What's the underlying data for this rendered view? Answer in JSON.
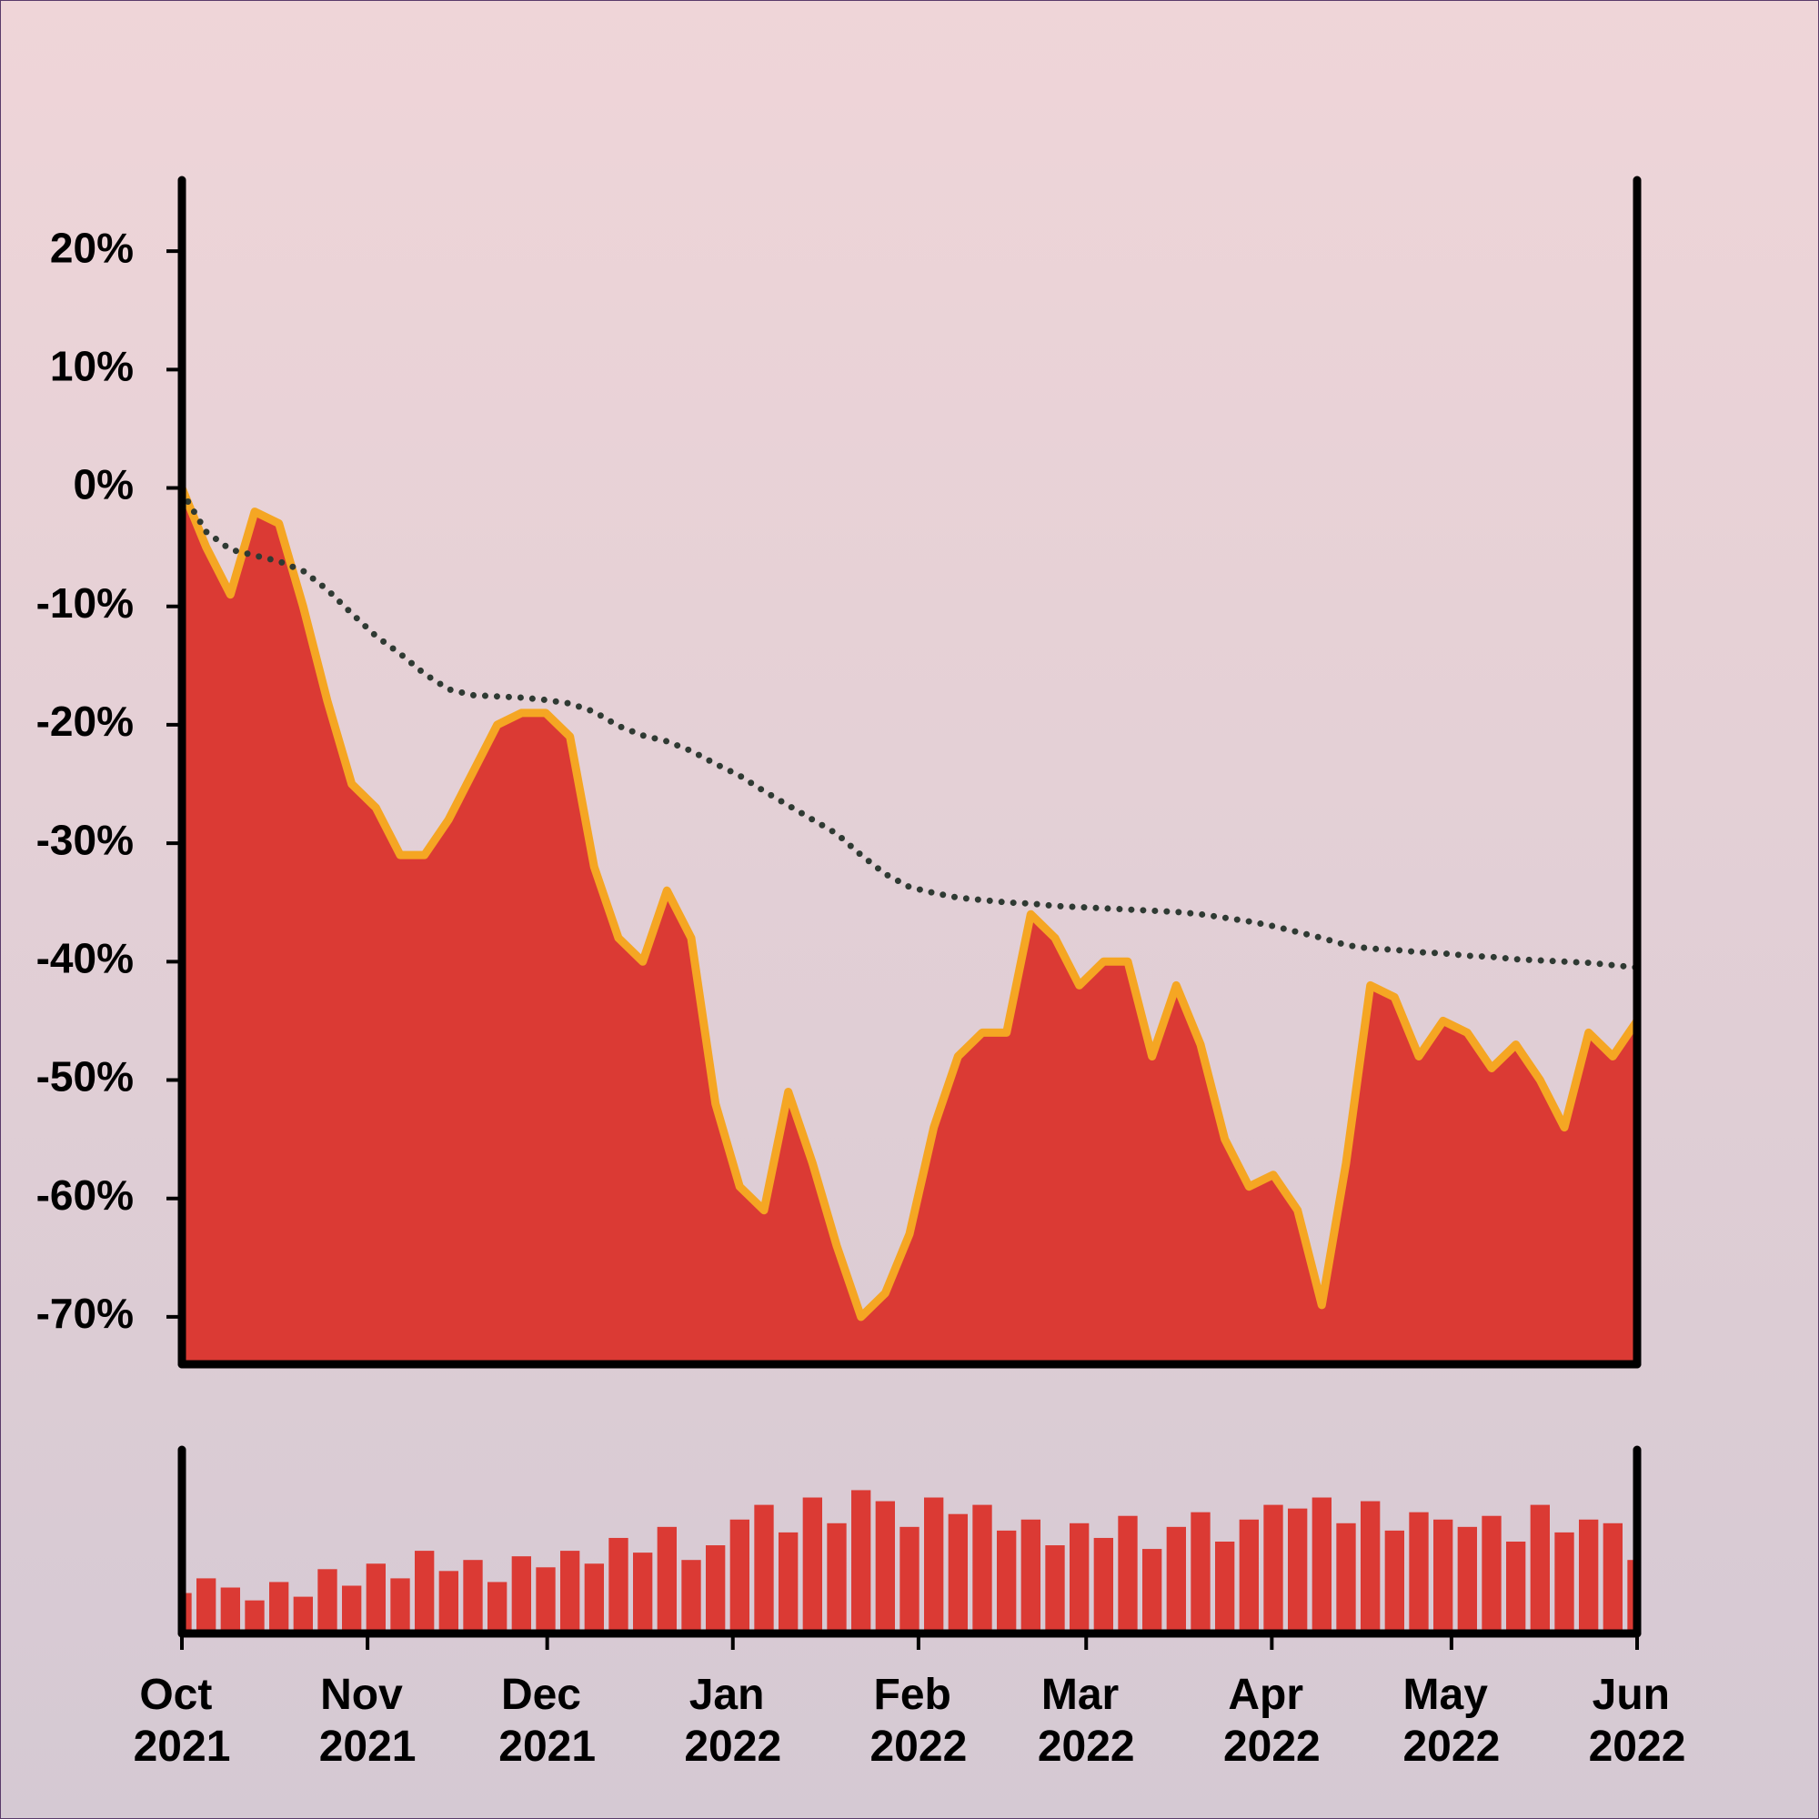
{
  "chart_data": {
    "type": "area",
    "xlim": [
      "2021-10",
      "2022-06"
    ],
    "xticks": [
      {
        "value": "2021-10",
        "label": "Oct 2021"
      },
      {
        "value": "2021-11",
        "label": "Nov 2021"
      },
      {
        "value": "2021-12",
        "label": "Dec 2021"
      },
      {
        "value": "2022-01",
        "label": "Jan 2022"
      },
      {
        "value": "2022-02",
        "label": "Feb 2022"
      },
      {
        "value": "2022-03",
        "label": "Mar 2022"
      },
      {
        "value": "2022-04",
        "label": "Apr 2022"
      },
      {
        "value": "2022-05",
        "label": "May 2022"
      },
      {
        "value": "2022-06",
        "label": "Jun 2022"
      }
    ],
    "ylim": [
      -74,
      26
    ],
    "yticks": [
      {
        "value": 20,
        "label": "20%"
      },
      {
        "value": 10,
        "label": "10%"
      },
      {
        "value": 0,
        "label": "0%"
      },
      {
        "value": -10,
        "label": "-10%"
      },
      {
        "value": -20,
        "label": "-20%"
      },
      {
        "value": -30,
        "label": "-30%"
      },
      {
        "value": -40,
        "label": "-40%"
      },
      {
        "value": -50,
        "label": "-50%"
      },
      {
        "value": -60,
        "label": "-60%"
      },
      {
        "value": -70,
        "label": "-70%"
      }
    ],
    "series": [
      {
        "color": "#db3a34",
        "line_color": "#f5a623",
        "style": "area",
        "values": [
          0,
          -5,
          -9,
          -2,
          -3,
          -10,
          -18,
          -25,
          -27,
          -31,
          -31,
          -28,
          -24,
          -20,
          -19,
          -19,
          -21,
          -32,
          -38,
          -40,
          -34,
          -38,
          -52,
          -59,
          -61,
          -51,
          -57,
          -64,
          -70,
          -68,
          -63,
          -54,
          -48,
          -46,
          -46,
          -36,
          -38,
          -42,
          -40,
          -40,
          -48,
          -42,
          -47,
          -55,
          -59,
          -58,
          -61,
          -69,
          -57,
          -42,
          -43,
          -48,
          -45,
          -46,
          -49,
          -47,
          -50,
          -54,
          -46,
          -48,
          -45
        ]
      },
      {
        "color": "#2f3a33",
        "style": "dotted",
        "values": [
          -0.3,
          -3.7,
          -5.2,
          -5.7,
          -6.2,
          -7,
          -8.6,
          -10.6,
          -12.5,
          -14,
          -15.7,
          -17,
          -17.5,
          -17.6,
          -17.7,
          -17.9,
          -18.2,
          -18.9,
          -20.1,
          -20.9,
          -21.4,
          -22.2,
          -23.3,
          -24.3,
          -25.6,
          -26.8,
          -28,
          -29.2,
          -31,
          -32.6,
          -33.7,
          -34.2,
          -34.6,
          -34.8,
          -35,
          -35.1,
          -35.3,
          -35.4,
          -35.5,
          -35.6,
          -35.7,
          -35.8,
          -36,
          -36.3,
          -36.6,
          -37,
          -37.5,
          -38,
          -38.6,
          -38.9,
          -39,
          -39.2,
          -39.3,
          -39.5,
          -39.6,
          -39.8,
          -39.9,
          -40,
          -40.1,
          -40.3,
          -40.5
        ]
      }
    ],
    "volume": {
      "type": "bar",
      "color": "#db3a34",
      "ylim": [
        0,
        100
      ],
      "values": [
        22,
        30,
        25,
        18,
        28,
        20,
        35,
        26,
        38,
        30,
        45,
        34,
        40,
        28,
        42,
        36,
        45,
        38,
        52,
        44,
        58,
        40,
        48,
        62,
        70,
        55,
        74,
        60,
        78,
        72,
        58,
        74,
        65,
        70,
        56,
        62,
        48,
        60,
        52,
        64,
        46,
        58,
        66,
        50,
        62,
        70,
        68,
        74,
        60,
        72,
        56,
        66,
        62,
        58,
        64,
        50,
        70,
        55,
        62,
        60,
        40
      ]
    }
  }
}
